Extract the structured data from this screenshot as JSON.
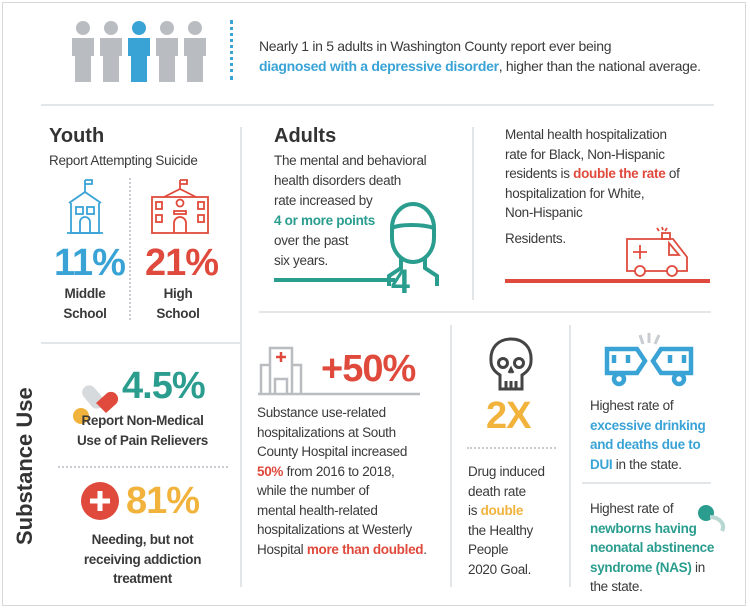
{
  "top": {
    "text_1": "Nearly 1 in 5 adults in Washington County report ever being",
    "highlight": "diagnosed with a depressive disorder",
    "text_2": ", higher than the national average."
  },
  "youth": {
    "title": "Youth",
    "subtitle": "Report Attempting Suicide",
    "middle_value": "11%",
    "middle_label_1": "Middle",
    "middle_label_2": "School",
    "high_value": "21%",
    "high_label_1": "High",
    "high_label_2": "School"
  },
  "adults": {
    "title": "Adults",
    "lines": [
      "The mental and behavioral",
      "health disorders death",
      "rate increased by"
    ],
    "highlight": "4 or more points",
    "lines_2": [
      "over the past",
      "six years."
    ],
    "icon_number": "4"
  },
  "hosp": {
    "l1": "Mental health hospitalization",
    "l2": "rate for Black, Non-Hispanic",
    "l3a": "residents is ",
    "highlight": "double the rate",
    "l3b": " of",
    "l4": "hospitalization for White,",
    "l5": "Non-Hispanic",
    "l6": "Residents."
  },
  "substance": {
    "title": "Substance Use",
    "pain": {
      "value": "4.5%",
      "l1": "Report Non-Medical",
      "l2": "Use of Pain Relievers"
    },
    "addiction": {
      "value": "81%",
      "l1": "Needing, but not",
      "l2": "receiving addiction",
      "l3": "treatment"
    },
    "hospital": {
      "value": "+50%",
      "l1": "Substance use-related",
      "l2": "hospitalizations at South",
      "l3": "County Hospital increased",
      "l4_hl": "50%",
      "l4": " from 2016 to 2018,",
      "l5": "while the number of",
      "l6": "mental health-related",
      "l7": "hospitalizations at Westerly",
      "l8": "Hospital ",
      "l8_hl": "more than doubled",
      "l8_end": "."
    },
    "drug": {
      "value": "2X",
      "l1": "Drug induced",
      "l2": "death rate",
      "l3": "is ",
      "l3_hl": "double",
      "l4": "the Healthy",
      "l5": "People",
      "l6": "2020 Goal."
    },
    "dui": {
      "l1": "Highest rate of",
      "hl1": "excessive drinking",
      "hl2": "and deaths due to",
      "hl3": "DUI",
      "l4": " in the state."
    },
    "nas": {
      "l1": "Highest rate of",
      "hl1": "newborns having",
      "hl2": "neonatal abstinence",
      "hl3": "syndrome (NAS)",
      "l4": " in",
      "l5": "the state."
    }
  },
  "colors": {
    "blue": "#3aa3d6",
    "teal": "#2a9d8f",
    "red": "#df4a3c",
    "orange": "#f2b33d",
    "gray": "#b9bcc0"
  }
}
